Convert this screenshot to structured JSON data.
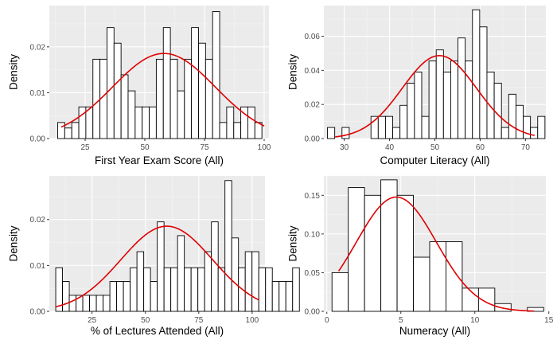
{
  "chart_data": [
    {
      "type": "bar",
      "subtype": "histogram with normal density curve",
      "xlabel": "First Year Exam Score (All)",
      "ylabel": "Density",
      "xlim": [
        10,
        102
      ],
      "ylim": [
        0,
        0.029
      ],
      "xticks": [
        25,
        50,
        75,
        100
      ],
      "yticks": [
        0.0,
        0.01,
        0.02
      ],
      "ytick_labels": [
        "0.00",
        "0.01",
        "0.02"
      ],
      "grid": true,
      "bin_start": 13.5,
      "bin_width": 2.95,
      "values": [
        0.0035,
        0.0023,
        0.0035,
        0.0069,
        0.0069,
        0.0173,
        0.0173,
        0.0242,
        0.0208,
        0.0139,
        0.0104,
        0.0069,
        0.0069,
        0.0069,
        0.0173,
        0.0242,
        0.0173,
        0.0104,
        0.0173,
        0.0242,
        0.0208,
        0.0173,
        0.0277,
        0.0035,
        0.0069,
        0.0035,
        0.0069,
        0.0069,
        0.0035
      ],
      "curve_color": "#e00000",
      "normal_mean": 58,
      "normal_sd": 21.5,
      "curve_range": [
        15,
        100
      ]
    },
    {
      "type": "bar",
      "subtype": "histogram with normal density curve",
      "xlabel": "Computer Literacy (All)",
      "ylabel": "Density",
      "xlim": [
        25.5,
        74.5
      ],
      "ylim": [
        0,
        0.078
      ],
      "xticks": [
        30,
        40,
        50,
        60,
        70
      ],
      "yticks": [
        0.0,
        0.02,
        0.04,
        0.06
      ],
      "ytick_labels": [
        "0.00",
        "0.02",
        "0.04",
        "0.06"
      ],
      "grid": true,
      "bin_start": 26.3,
      "bin_width": 1.6,
      "values": [
        0.0065,
        0.0,
        0.0065,
        0.0,
        0.0,
        0.0,
        0.013,
        0.013,
        0.013,
        0.0065,
        0.0195,
        0.0325,
        0.039,
        0.013,
        0.0455,
        0.052,
        0.039,
        0.0455,
        0.059,
        0.0455,
        0.0755,
        0.0655,
        0.039,
        0.0325,
        0.0065,
        0.026,
        0.0195,
        0.013,
        0.0065,
        0.013,
        0.0,
        0.0,
        0.0065
      ],
      "curve_color": "#e00000",
      "normal_mean": 51,
      "normal_sd": 8.2,
      "curve_range": [
        28,
        72
      ]
    },
    {
      "type": "bar",
      "subtype": "histogram with normal density curve",
      "xlabel": "% of Lectures Attended (All)",
      "ylabel": "Density",
      "xlim": [
        5,
        106
      ],
      "ylim": [
        0,
        0.0295
      ],
      "xticks": [
        25,
        50,
        75,
        100
      ],
      "yticks": [
        0.0,
        0.01,
        0.02
      ],
      "ytick_labels": [
        "0.00",
        "0.01",
        "0.02"
      ],
      "grid": true,
      "bin_start": 8,
      "bin_width": 3.17,
      "values": [
        0.0095,
        0.0065,
        0.0035,
        0.0035,
        0.0035,
        0.0035,
        0.0035,
        0.0035,
        0.0065,
        0.0065,
        0.0065,
        0.0095,
        0.013,
        0.0095,
        0.0065,
        0.0195,
        0.0095,
        0.0095,
        0.0165,
        0.0095,
        0.0095,
        0.0095,
        0.013,
        0.0195,
        0.0095,
        0.0285,
        0.016,
        0.0095,
        0.013,
        0.013,
        0.0095,
        0.0095,
        0.0065,
        0.0065,
        0.0065,
        0.0095
      ],
      "curve_color": "#e00000",
      "normal_mean": 60,
      "normal_sd": 21.5,
      "curve_range": [
        8,
        103
      ]
    },
    {
      "type": "bar",
      "subtype": "histogram with normal density curve",
      "xlabel": "Numeracy (All)",
      "ylabel": "Density",
      "xlim": [
        -0.2,
        14.8
      ],
      "ylim": [
        0,
        0.175
      ],
      "xticks": [
        0,
        5,
        10,
        15
      ],
      "yticks": [
        0.0,
        0.05,
        0.1,
        0.15
      ],
      "ytick_labels": [
        "0.00",
        "0.05",
        "0.10",
        "0.15"
      ],
      "grid": true,
      "bin_start": 0.35,
      "bin_width": 1.1,
      "values": [
        0.05,
        0.16,
        0.15,
        0.17,
        0.15,
        0.07,
        0.09,
        0.09,
        0.03,
        0.03,
        0.01,
        0.0,
        0.005
      ],
      "curve_color": "#e00000",
      "normal_mean": 4.7,
      "normal_sd": 2.7,
      "curve_range": [
        0.8,
        14
      ]
    }
  ]
}
